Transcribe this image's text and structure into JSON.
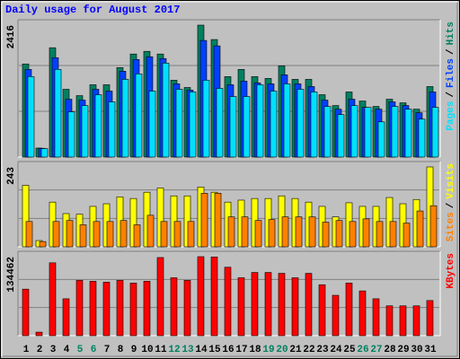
{
  "chart_data": [
    {
      "type": "bar",
      "title": "Daily usage for August 2017",
      "ylim": [
        0,
        2416
      ],
      "yticks": [
        2416
      ],
      "legend_separator": "/",
      "series": [
        {
          "name": "Hits",
          "color": "#008060",
          "values": [
            1705,
            165,
            2002,
            1241,
            1125,
            1324,
            1324,
            1638,
            1887,
            1936,
            1887,
            1407,
            1274,
            2416,
            2152,
            1473,
            1605,
            1473,
            1440,
            1671,
            1423,
            1423,
            1142,
            943,
            1192,
            1026,
            927,
            1059,
            993,
            877,
            1291
          ]
        },
        {
          "name": "Files",
          "color": "#0040ff",
          "values": [
            1605,
            160,
            1820,
            1059,
            1043,
            1241,
            1208,
            1572,
            1787,
            1837,
            1804,
            1341,
            1225,
            2135,
            2036,
            1324,
            1390,
            1357,
            1341,
            1506,
            1341,
            1291,
            1043,
            877,
            1059,
            910,
            877,
            1010,
            943,
            811,
            1192
          ]
        },
        {
          "name": "Pages",
          "color": "#00e0ff",
          "values": [
            1473,
            155,
            1605,
            827,
            943,
            1142,
            1010,
            1423,
            1523,
            1208,
            1721,
            1241,
            1192,
            1407,
            1258,
            1109,
            1109,
            1324,
            1208,
            1341,
            1241,
            1192,
            927,
            778,
            943,
            910,
            645,
            927,
            877,
            695,
            910
          ]
        }
      ]
    },
    {
      "type": "bar",
      "ylim": [
        0,
        243
      ],
      "yticks": [
        243
      ],
      "legend_separator": "/",
      "series": [
        {
          "name": "Visits",
          "color": "#ffff00",
          "values": [
            187,
            19,
            136,
            101,
            99,
            123,
            131,
            152,
            147,
            166,
            179,
            155,
            155,
            182,
            166,
            136,
            142,
            147,
            147,
            155,
            147,
            136,
            123,
            91,
            134,
            123,
            123,
            150,
            131,
            144,
            243
          ]
        },
        {
          "name": "Sites",
          "color": "#ff8000",
          "values": [
            77,
            16,
            77,
            80,
            67,
            77,
            77,
            80,
            67,
            96,
            77,
            77,
            77,
            163,
            163,
            91,
            91,
            80,
            83,
            91,
            91,
            91,
            75,
            80,
            77,
            85,
            77,
            77,
            72,
            109,
            125
          ]
        }
      ]
    },
    {
      "type": "bar",
      "ylim": [
        0,
        134462
      ],
      "yticks": [
        134462
      ],
      "categories": [
        "1",
        "2",
        "3",
        "4",
        "5",
        "6",
        "7",
        "8",
        "9",
        "10",
        "11",
        "12",
        "13",
        "14",
        "15",
        "16",
        "17",
        "18",
        "19",
        "20",
        "21",
        "22",
        "23",
        "24",
        "25",
        "26",
        "27",
        "28",
        "29",
        "30",
        "31"
      ],
      "weekend_color": "#008060",
      "weekend_indices": [
        4,
        5,
        11,
        12,
        18,
        19,
        25,
        26
      ],
      "series": [
        {
          "name": "KBytes",
          "color": "#ff0000",
          "values": [
            79200,
            6000,
            124000,
            62800,
            94100,
            92600,
            91100,
            94100,
            89600,
            92600,
            133000,
            98600,
            94100,
            134462,
            134000,
            116500,
            98600,
            107600,
            107600,
            106100,
            98600,
            106100,
            86700,
            68700,
            89600,
            76200,
            62800,
            50800,
            50800,
            50800,
            59800
          ]
        }
      ]
    }
  ]
}
